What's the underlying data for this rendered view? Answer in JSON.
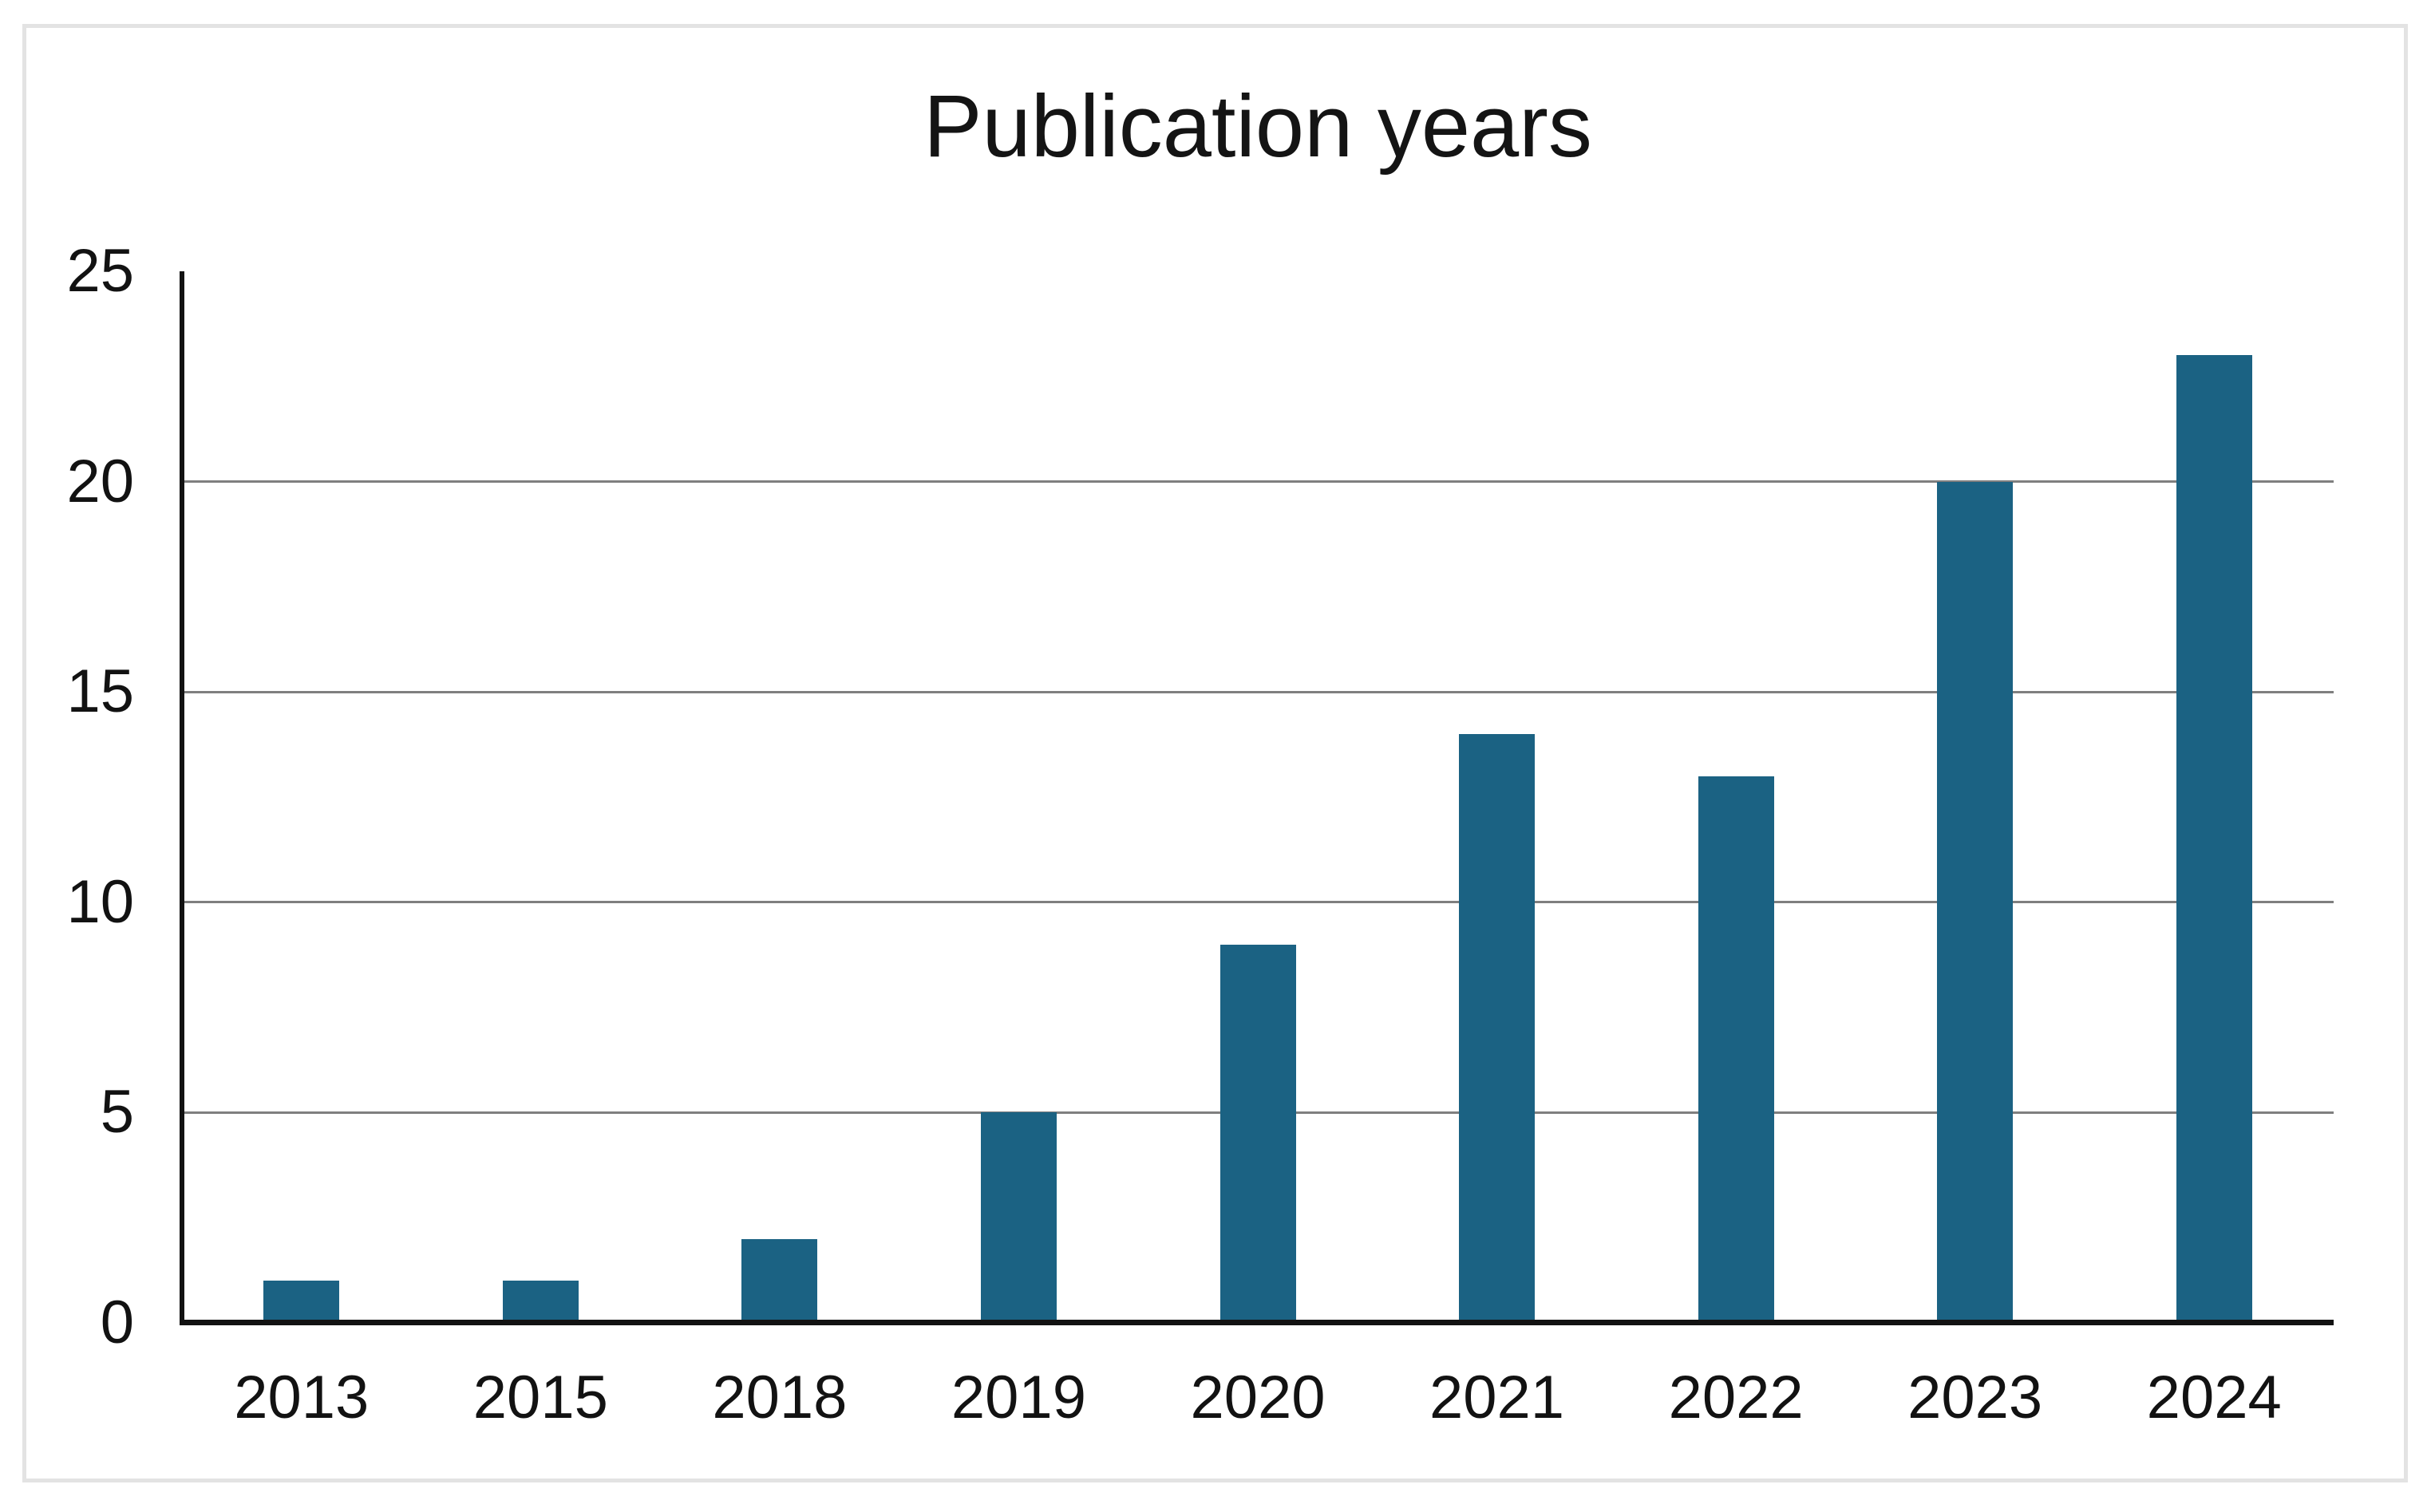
{
  "chart_data": {
    "type": "bar",
    "title": "Publication years",
    "categories": [
      "2013",
      "2015",
      "2018",
      "2019",
      "2020",
      "2021",
      "2022",
      "2023",
      "2024"
    ],
    "values": [
      1,
      1,
      2,
      5,
      9,
      14,
      13,
      20,
      23
    ],
    "xlabel": "",
    "ylabel": "",
    "ylim": [
      0,
      25
    ],
    "yticks": [
      0,
      5,
      10,
      15,
      20,
      25
    ],
    "gridline_values": [
      5,
      10,
      15,
      20
    ],
    "grid": true,
    "legend": false,
    "bar_color": "#1b6283",
    "gridline_color": "#7f7f7f",
    "axis_color": "#121212",
    "frame_border_color": "#e3e3e3",
    "background_color": "#ffffff"
  }
}
